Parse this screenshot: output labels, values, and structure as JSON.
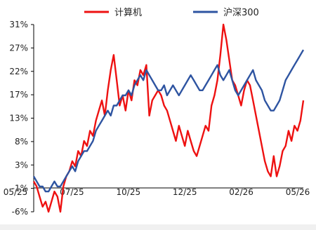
{
  "chart_data": {
    "type": "line",
    "title": "",
    "xlabel": "",
    "ylabel": "",
    "x_ticks": [
      "05/25",
      "07/25",
      "10/25",
      "12/25",
      "02/26",
      "05/26"
    ],
    "y_ticks": [
      "31%",
      "27%",
      "22%",
      "17%",
      "13%",
      "8%",
      "3%",
      "-1%",
      "-6%"
    ],
    "ylim": [
      -6,
      31
    ],
    "legend_position": "top",
    "grid": false,
    "series": [
      {
        "name": "计算机",
        "color": "#ee1111",
        "values": [
          0,
          -1,
          -3,
          -5,
          -4,
          -6,
          -4,
          -2,
          -3,
          -6,
          -1,
          1,
          2,
          4,
          3,
          6,
          5,
          8,
          7,
          10,
          9,
          12,
          14,
          16,
          13,
          18,
          22,
          25,
          20,
          15,
          17,
          14,
          18,
          16,
          20,
          19,
          22,
          21,
          23,
          13,
          16,
          17,
          18,
          17,
          15,
          14,
          12,
          10,
          8,
          11,
          9,
          7,
          10,
          8,
          6,
          5,
          7,
          9,
          11,
          10,
          15,
          17,
          20,
          25,
          31,
          28,
          24,
          20,
          19,
          17,
          15,
          18,
          20,
          19,
          16,
          13,
          10,
          7,
          4,
          2,
          1,
          5,
          1,
          3,
          6,
          7,
          10,
          8,
          11,
          10,
          12,
          16
        ]
      },
      {
        "name": "沪深300",
        "color": "#2e54a1",
        "values": [
          1,
          0,
          -1,
          -1,
          -2,
          -2,
          -1,
          0,
          -1,
          -1,
          0,
          1,
          2,
          3,
          2,
          4,
          5,
          6,
          6,
          7,
          8,
          10,
          11,
          12,
          13,
          14,
          13,
          15,
          15,
          16,
          17,
          17,
          18,
          17,
          19,
          20,
          21,
          20,
          22,
          21,
          20,
          19,
          18,
          18,
          19,
          17,
          18,
          19,
          18,
          17,
          18,
          19,
          20,
          21,
          20,
          19,
          18,
          18,
          19,
          20,
          21,
          22,
          23,
          21,
          20,
          21,
          22,
          20,
          18,
          17,
          18,
          19,
          20,
          21,
          22,
          20,
          19,
          18,
          16,
          15,
          14,
          14,
          15,
          16,
          18,
          20,
          21,
          22,
          23,
          24,
          25,
          26
        ]
      }
    ]
  }
}
